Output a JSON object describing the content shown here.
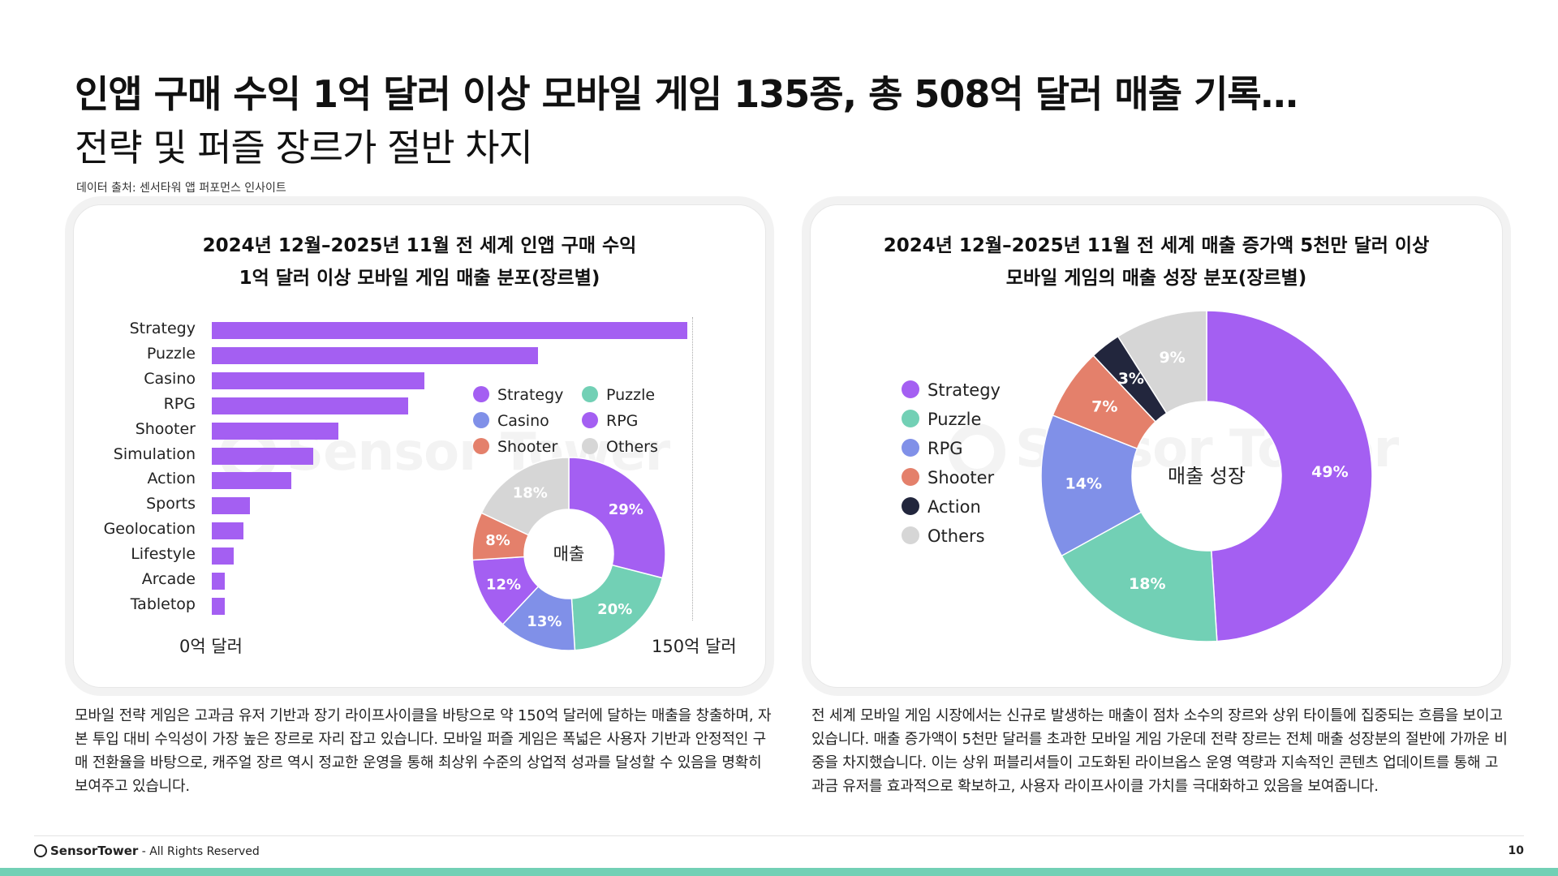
{
  "header": {
    "title": "인앱 구매 수익 1억 달러 이상 모바일 게임 135종, 총 508억 달러 매출 기록…",
    "subtitle": "전략 및 퍼즐 장르가 절반 차지",
    "source": "데이터 출처: 센서타워 앱 퍼포먼스 인사이트"
  },
  "watermark": "Sensor Tower",
  "colors": {
    "Strategy": "#a45ff2",
    "Puzzle": "#72d0b5",
    "Casino": "#8090e8",
    "RPG": "#a45ff2",
    "Shooter": "#e4806b",
    "Others": "#d6d6d6",
    "Action": "#22263d",
    "RPG_right": "#8090e8",
    "bar": "#a45ff2"
  },
  "left_card": {
    "title_line1": "2024년 12월–2025년 11월 전 세계 인앱 구매 수익",
    "title_line2": "1억 달러 이상 모바일 게임 매출 분포(장르별)",
    "axis_min_label": "0억 달러",
    "axis_max_label": "150억 달러",
    "donut_center": "매출",
    "legend": [
      "Strategy",
      "Puzzle",
      "Casino",
      "RPG",
      "Shooter",
      "Others"
    ],
    "paragraph": "모바일 전략 게임은 고과금 유저 기반과 장기 라이프사이클을 바탕으로 약 150억 달러에 달하는 매출을 창출하며, 자본 투입 대비 수익성이 가장 높은 장르로 자리 잡고 있습니다. 모바일 퍼즐 게임은 폭넓은 사용자 기반과 안정적인 구매 전환율을 바탕으로, 캐주얼 장르 역시 정교한 운영을 통해 최상위 수준의 상업적 성과를 달성할 수 있음을 명확히 보여주고 있습니다."
  },
  "right_card": {
    "title_line1": "2024년 12월–2025년 11월 전 세계 매출 증가액 5천만 달러 이상",
    "title_line2": "모바일 게임의 매출 성장 분포(장르별)",
    "donut_center": "매출 성장",
    "legend": [
      "Strategy",
      "Puzzle",
      "RPG",
      "Shooter",
      "Action",
      "Others"
    ],
    "paragraph": "전 세계 모바일 게임 시장에서는 신규로 발생하는 매출이 점차 소수의 장르와 상위 타이틀에 집중되는 흐름을 보이고 있습니다. 매출 증가액이 5천만 달러를 초과한 모바일 게임 가운데 전략 장르는 전체 매출 성장분의 절반에 가까운 비중을 차지했습니다. 이는 상위 퍼블리셔들이 고도화된 라이브옵스 운영 역량과 지속적인 콘텐츠 업데이트를 통해 고과금 유저를 효과적으로 확보하고, 사용자 라이프사이클 가치를 극대화하고 있음을 보여줍니다."
  },
  "chart_data": [
    {
      "type": "bar",
      "orientation": "horizontal",
      "categories": [
        "Strategy",
        "Puzzle",
        "Casino",
        "RPG",
        "Shooter",
        "Simulation",
        "Action",
        "Sports",
        "Geolocation",
        "Lifestyle",
        "Arcade",
        "Tabletop"
      ],
      "values": [
        15.0,
        10.3,
        6.7,
        6.2,
        4.0,
        3.2,
        2.5,
        1.2,
        1.0,
        0.7,
        0.4,
        0.4
      ],
      "unit": "십억 달러 (billion USD)",
      "xlim": [
        0,
        15
      ],
      "xlabel_min": "0억 달러",
      "xlabel_max": "150억 달러"
    },
    {
      "type": "pie",
      "labels": [
        "Strategy",
        "Puzzle",
        "Casino",
        "RPG",
        "Shooter",
        "Others"
      ],
      "values": [
        29,
        20,
        13,
        12,
        8,
        18
      ],
      "value_labels": [
        "29%",
        "20%",
        "13%",
        "12%",
        "8%",
        "18%"
      ],
      "colors": [
        "#a45ff2",
        "#72d0b5",
        "#8090e8",
        "#a45ff2",
        "#e4806b",
        "#d6d6d6"
      ],
      "center_label": "매출"
    },
    {
      "type": "pie",
      "title": "2024년 12월–2025년 11월 전 세계 매출 증가액 5천만 달러 이상 모바일 게임의 매출 성장 분포(장르별)",
      "labels": [
        "Strategy",
        "Puzzle",
        "RPG",
        "Shooter",
        "Action",
        "Others"
      ],
      "values": [
        49,
        18,
        14,
        7,
        3,
        9
      ],
      "value_labels": [
        "49%",
        "18%",
        "14%",
        "7%",
        "3%",
        "9%"
      ],
      "colors": [
        "#a45ff2",
        "#72d0b5",
        "#8090e8",
        "#e4806b",
        "#22263d",
        "#d6d6d6"
      ],
      "center_label": "매출 성장"
    }
  ],
  "footer": {
    "brand": "SensorTower",
    "copyright": " - All Rights Reserved",
    "page": "10"
  }
}
